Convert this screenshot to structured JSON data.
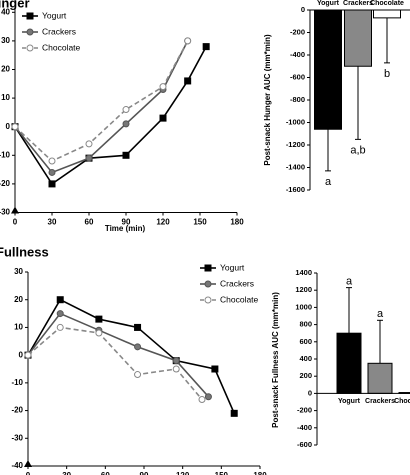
{
  "chart_data": [
    {
      "type": "line",
      "title": "Hunger",
      "xlabel": "Time (min)",
      "xlim": [
        0,
        180
      ],
      "xticks": [
        0,
        30,
        60,
        90,
        120,
        150,
        180
      ],
      "ylim": [
        -30,
        45
      ],
      "yticks": [
        -30,
        -20,
        -10,
        0,
        10,
        20,
        30,
        40
      ],
      "legend": "upper left",
      "series": [
        {
          "name": "Yogurt",
          "color": "#000000",
          "fill": "#000000",
          "marker": "square",
          "dashed": false,
          "x": [
            0,
            30,
            60,
            90,
            120,
            140,
            155
          ],
          "values": [
            0,
            -20,
            -11,
            -10,
            3,
            16,
            28
          ]
        },
        {
          "name": "Crackers",
          "color": "#555555",
          "fill": "#777777",
          "marker": "circle",
          "dashed": false,
          "x": [
            0,
            30,
            60,
            90,
            120,
            140
          ],
          "values": [
            0,
            -16,
            -11,
            1,
            13,
            30
          ]
        },
        {
          "name": "Chocolate",
          "color": "#888888",
          "fill": "#ffffff",
          "marker": "circle",
          "dashed": true,
          "x": [
            0,
            30,
            60,
            90,
            120,
            140
          ],
          "values": [
            0,
            -12,
            -6,
            6,
            14,
            30
          ]
        }
      ]
    },
    {
      "type": "bar",
      "ylabel": "Post-snack Hunger AUC (mm*min)",
      "categories": [
        "Yogurt",
        "Crackers",
        "Chocolate"
      ],
      "values": [
        -1060,
        -500,
        -70
      ],
      "errors": [
        370,
        650,
        400
      ],
      "letters": [
        "a",
        "a,b",
        "b"
      ],
      "colors": [
        "#000000",
        "#888888",
        "#ffffff"
      ],
      "ylim": [
        -1600,
        0
      ],
      "yticks": [
        -1600,
        -1400,
        -1200,
        -1000,
        -800,
        -600,
        -400,
        -200,
        0
      ]
    },
    {
      "type": "line",
      "title": "Fullness",
      "xlim": [
        0,
        180
      ],
      "xticks": [
        0,
        30,
        60,
        90,
        120,
        150,
        180
      ],
      "ylim": [
        -40,
        30
      ],
      "yticks": [
        -40,
        -30,
        -20,
        -10,
        0,
        10,
        20,
        30
      ],
      "legend": "upper right",
      "series": [
        {
          "name": "Yogurt",
          "color": "#000000",
          "fill": "#000000",
          "marker": "square",
          "dashed": false,
          "x": [
            0,
            25,
            55,
            85,
            115,
            145,
            160
          ],
          "values": [
            0,
            20,
            13,
            10,
            -2,
            -5,
            -21
          ]
        },
        {
          "name": "Crackers",
          "color": "#555555",
          "fill": "#777777",
          "marker": "circle",
          "dashed": false,
          "x": [
            0,
            25,
            55,
            85,
            115,
            140
          ],
          "values": [
            0,
            15,
            9,
            3,
            -2,
            -15
          ]
        },
        {
          "name": "Chocolate",
          "color": "#888888",
          "fill": "#ffffff",
          "marker": "circle",
          "dashed": true,
          "x": [
            0,
            25,
            55,
            85,
            115,
            135
          ],
          "values": [
            0,
            10,
            8,
            -7,
            -5,
            -16
          ]
        }
      ]
    },
    {
      "type": "bar",
      "ylabel": "Post-snack Fullness AUC (mm*min)",
      "categories": [
        "Yogurt",
        "Crackers",
        "Chocolate"
      ],
      "values": [
        700,
        350,
        10
      ],
      "errors": [
        530,
        500,
        null
      ],
      "letters": [
        "a",
        "a",
        null
      ],
      "colors": [
        "#000000",
        "#888888",
        "#ffffff"
      ],
      "ylim": [
        -600,
        1400
      ],
      "yticks": [
        -600,
        -400,
        -200,
        0,
        200,
        400,
        600,
        800,
        1000,
        1200,
        1400
      ]
    }
  ]
}
